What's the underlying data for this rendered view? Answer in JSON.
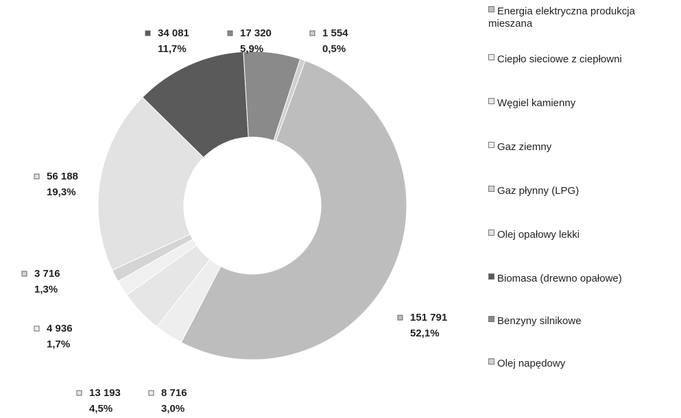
{
  "chart_data": {
    "type": "pie",
    "donut": true,
    "categories": [
      "Energia elektryczna produkcja mieszana",
      "Ciepło sieciowe z ciepłowni",
      "Węgiel kamienny",
      "Gaz ziemny",
      "Gaz płynny (LPG)",
      "Olej opałowy lekki",
      "Biomasa (drewno opałowe)",
      "Benzyny silnikowe",
      "Olej napędowy"
    ],
    "values": [
      151791,
      8716,
      13193,
      4936,
      3716,
      56188,
      34081,
      17320,
      1554
    ],
    "value_labels": [
      "151 791",
      "8 716",
      "13 193",
      "4 936",
      "3 716",
      "56 188",
      "34 081",
      "17 320",
      "1 554"
    ],
    "percentages": [
      {
        "value": 52.1,
        "label": "52,1%"
      },
      {
        "value": 3.0,
        "label": "3,0%"
      },
      {
        "value": 4.5,
        "label": "4,5%"
      },
      {
        "value": 1.7,
        "label": "1,7%"
      },
      {
        "value": 1.3,
        "label": "1,3%"
      },
      {
        "value": 19.3,
        "label": "19,3%"
      },
      {
        "value": 11.7,
        "label": "11,7%"
      },
      {
        "value": 5.9,
        "label": "5,9%"
      },
      {
        "value": 0.5,
        "label": "0,5%"
      }
    ],
    "colors": [
      "#bdbdbd",
      "#eeeeee",
      "#e6e6e6",
      "#f0f0f0",
      "#d4d4d4",
      "#e2e2e2",
      "#5a5a5a",
      "#8a8a8a",
      "#cfcfcf"
    ]
  }
}
